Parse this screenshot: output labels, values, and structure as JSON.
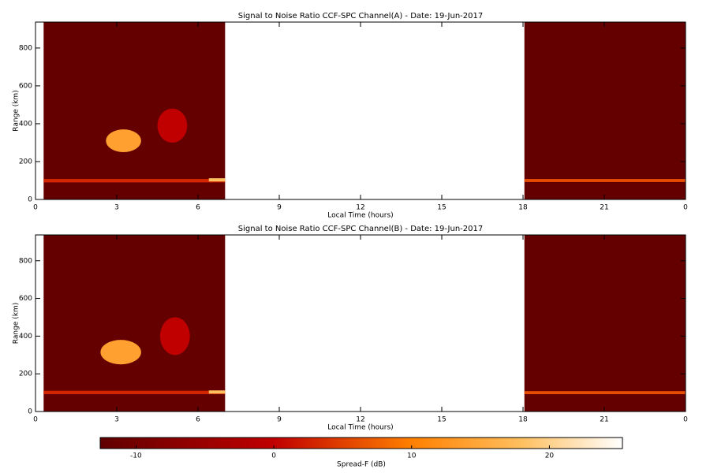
{
  "chart_data": [
    {
      "type": "heatmap",
      "title": "Signal to Noise Ratio CCF-SPC Channel(A) - Date: 19-Jun-2017",
      "x_label": "Local Time (hours)",
      "y_label": "Range (km)",
      "xlim": [
        0,
        24
      ],
      "xticks": [
        0,
        3,
        6,
        9,
        12,
        15,
        18,
        21,
        {
          "value": 24,
          "label": "0"
        }
      ],
      "ylim": [
        0,
        937
      ],
      "yticks": [
        0,
        200,
        400,
        600,
        800
      ],
      "regions": [
        {
          "x": [
            0.3,
            7.0
          ],
          "y": [
            0,
            937
          ],
          "value": -12
        },
        {
          "x": [
            18.05,
            24
          ],
          "y": [
            0,
            937
          ],
          "value": -12
        },
        {
          "x": [
            0.3,
            7.0
          ],
          "y": [
            90,
            108
          ],
          "value": 3
        },
        {
          "x": [
            6.4,
            7.0
          ],
          "y": [
            95,
            112
          ],
          "value": 18
        },
        {
          "x": [
            18.05,
            24
          ],
          "y": [
            92,
            108
          ],
          "value": 6
        },
        {
          "x": [
            2.6,
            3.9
          ],
          "y": [
            250,
            370
          ],
          "value": 14
        },
        {
          "x": [
            4.5,
            5.6
          ],
          "y": [
            300,
            480
          ],
          "value": 0
        }
      ]
    },
    {
      "type": "heatmap",
      "title": "Signal to Noise Ratio CCF-SPC Channel(B) - Date: 19-Jun-2017",
      "x_label": "Local Time (hours)",
      "y_label": "Range (km)",
      "xlim": [
        0,
        24
      ],
      "xticks": [
        0,
        3,
        6,
        9,
        12,
        15,
        18,
        21,
        {
          "value": 24,
          "label": "0"
        }
      ],
      "ylim": [
        0,
        937
      ],
      "yticks": [
        0,
        200,
        400,
        600,
        800
      ],
      "regions": [
        {
          "x": [
            0.3,
            7.0
          ],
          "y": [
            0,
            937
          ],
          "value": -12
        },
        {
          "x": [
            18.05,
            24
          ],
          "y": [
            0,
            937
          ],
          "value": -12
        },
        {
          "x": [
            0.3,
            7.0
          ],
          "y": [
            92,
            110
          ],
          "value": 3
        },
        {
          "x": [
            6.4,
            7.0
          ],
          "y": [
            95,
            112
          ],
          "value": 18
        },
        {
          "x": [
            18.05,
            24
          ],
          "y": [
            92,
            108
          ],
          "value": 6
        },
        {
          "x": [
            2.4,
            3.9
          ],
          "y": [
            250,
            380
          ],
          "value": 14
        },
        {
          "x": [
            4.6,
            5.7
          ],
          "y": [
            300,
            500
          ],
          "value": 0
        }
      ]
    }
  ],
  "colorbar": {
    "label": "Spread-F (dB)",
    "clim": [
      -12.6,
      25.3
    ],
    "ticks": [
      -10,
      0,
      10,
      20
    ],
    "colorscale": [
      {
        "value": -12.6,
        "color": "#600000"
      },
      {
        "value": 0,
        "color": "#c00000"
      },
      {
        "value": 10,
        "color": "#ff8000"
      },
      {
        "value": 18,
        "color": "#ffc060"
      },
      {
        "value": 25.3,
        "color": "#ffffff"
      }
    ]
  }
}
